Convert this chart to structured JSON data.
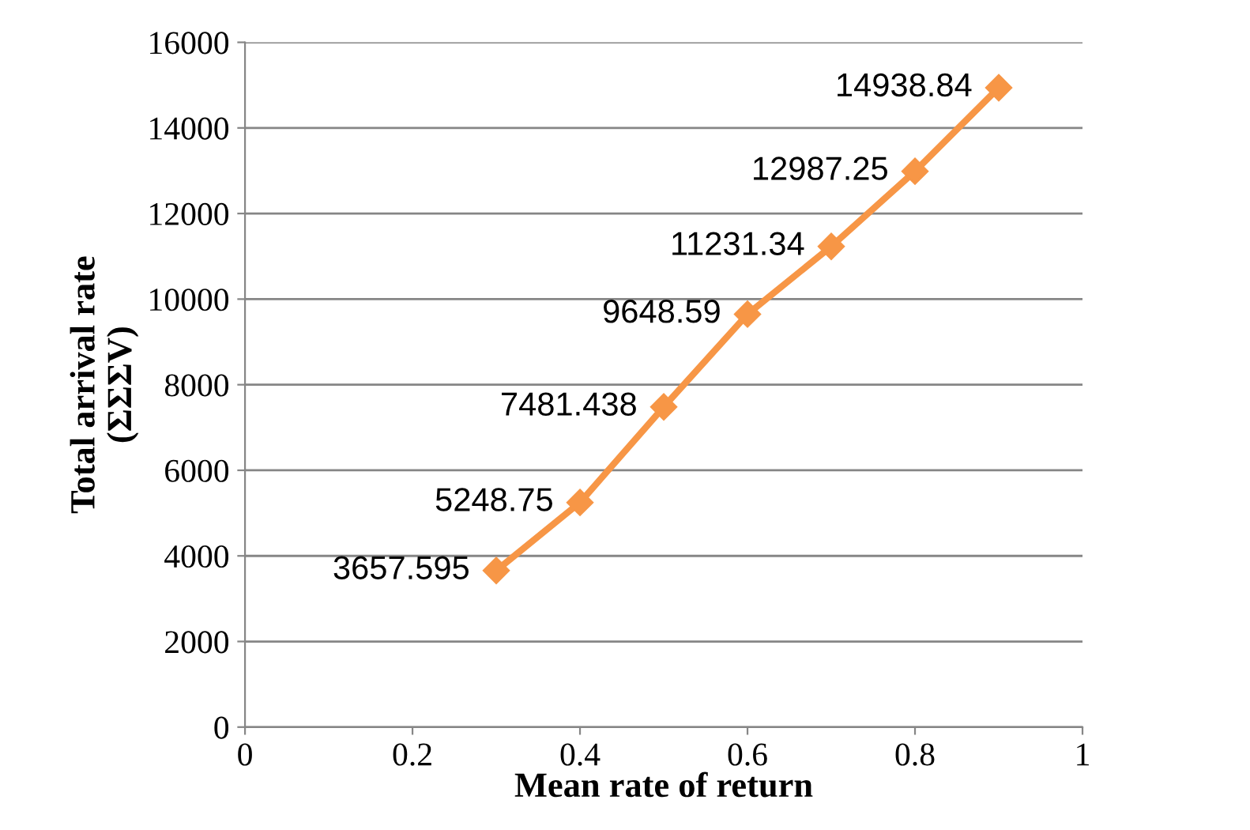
{
  "chart_data": {
    "type": "line",
    "xlabel": "Mean rate of return",
    "ylabel": "Total arrival rate\n(ΣΣΣV)",
    "x": [
      0.3,
      0.4,
      0.5,
      0.6,
      0.7,
      0.8,
      0.9
    ],
    "series": [
      {
        "color": "#f79646",
        "values": [
          3657.595,
          5248.75,
          7481.438,
          9648.59,
          11231.34,
          12987.25,
          14938.84
        ]
      }
    ],
    "xlim": [
      0,
      1
    ],
    "xticks": [
      0,
      0.2,
      0.4,
      0.6,
      0.8,
      1
    ],
    "ylim": [
      0,
      16000
    ],
    "yticks": [
      0,
      2000,
      4000,
      6000,
      8000,
      10000,
      12000,
      14000,
      16000
    ],
    "grid": "y",
    "marker": "diamond",
    "line_style": "solid",
    "data_labels": true,
    "legend": false
  }
}
